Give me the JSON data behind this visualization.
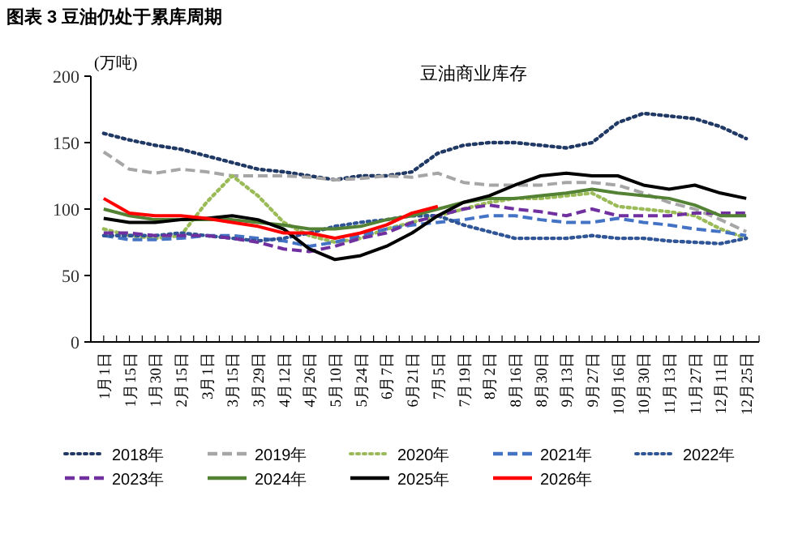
{
  "chart_data": {
    "type": "line",
    "title": "图表 3 豆油仍处于累库周期",
    "subtitle": "豆油商业库存",
    "ylabel": "(万吨)",
    "categories": [
      "1月1日",
      "1月15日",
      "1月30日",
      "2月15日",
      "3月1日",
      "3月15日",
      "3月29日",
      "4月12日",
      "4月26日",
      "5月10日",
      "5月24日",
      "6月7日",
      "6月21日",
      "7月5日",
      "7月19日",
      "8月2日",
      "8月16日",
      "8月30日",
      "9月13日",
      "9月27日",
      "10月16日",
      "10月30日",
      "11月13日",
      "11月27日",
      "12月11日",
      "12月25日"
    ],
    "ylim": [
      0,
      200
    ],
    "yticks": [
      0,
      50,
      100,
      150,
      200
    ],
    "grid": false,
    "legend": "bottom",
    "marker": "none",
    "series": [
      {
        "name": "2018年",
        "color": "#1f3864",
        "line_style": "dotted",
        "values": [
          157,
          152,
          148,
          145,
          140,
          135,
          130,
          128,
          125,
          122,
          125,
          125,
          128,
          142,
          148,
          150,
          150,
          148,
          146,
          150,
          165,
          172,
          170,
          168,
          162,
          153
        ]
      },
      {
        "name": "2019年",
        "color": "#a6a6a6",
        "line_style": "dashed",
        "values": [
          143,
          130,
          127,
          130,
          128,
          125,
          125,
          125,
          124,
          122,
          123,
          125,
          124,
          127,
          120,
          118,
          118,
          118,
          120,
          120,
          118,
          112,
          105,
          100,
          92,
          83
        ]
      },
      {
        "name": "2020年",
        "color": "#9bbb59",
        "line_style": "dotted",
        "values": [
          85,
          80,
          78,
          80,
          105,
          125,
          110,
          90,
          80,
          75,
          78,
          85,
          90,
          95,
          100,
          105,
          108,
          108,
          110,
          112,
          102,
          100,
          98,
          95,
          85,
          78
        ]
      },
      {
        "name": "2021年",
        "color": "#4472c4",
        "line_style": "dashed",
        "values": [
          80,
          77,
          77,
          78,
          80,
          80,
          78,
          76,
          72,
          75,
          80,
          85,
          88,
          90,
          92,
          95,
          95,
          92,
          90,
          90,
          93,
          90,
          88,
          85,
          83,
          80
        ]
      },
      {
        "name": "2022年",
        "color": "#2f5597",
        "line_style": "dotted",
        "values": [
          80,
          80,
          80,
          82,
          80,
          78,
          76,
          78,
          82,
          87,
          90,
          92,
          95,
          95,
          88,
          83,
          78,
          78,
          78,
          80,
          78,
          78,
          76,
          75,
          74,
          78
        ]
      },
      {
        "name": "2023年",
        "color": "#7030a0",
        "line_style": "dashed",
        "values": [
          82,
          82,
          80,
          80,
          80,
          78,
          75,
          70,
          68,
          72,
          78,
          82,
          90,
          95,
          100,
          103,
          100,
          98,
          95,
          100,
          95,
          95,
          95,
          97,
          97,
          97
        ]
      },
      {
        "name": "2024年",
        "color": "#548235",
        "line_style": "solid",
        "values": [
          100,
          95,
          92,
          92,
          92,
          92,
          90,
          88,
          85,
          85,
          87,
          92,
          95,
          100,
          105,
          108,
          108,
          110,
          112,
          115,
          112,
          110,
          108,
          103,
          95,
          95
        ]
      },
      {
        "name": "2025年",
        "color": "#000000",
        "line_style": "solid",
        "values": [
          93,
          90,
          90,
          92,
          93,
          95,
          92,
          85,
          70,
          62,
          65,
          72,
          82,
          95,
          105,
          110,
          118,
          125,
          127,
          125,
          125,
          118,
          115,
          118,
          112,
          108
        ]
      },
      {
        "name": "2026年",
        "color": "#ff0000",
        "line_style": "solid",
        "values": [
          108,
          97,
          95,
          95,
          93,
          90,
          87,
          82,
          82,
          78,
          82,
          88,
          97,
          102,
          null,
          null,
          null,
          null,
          null,
          null,
          null,
          null,
          null,
          null,
          null,
          null
        ]
      }
    ]
  }
}
